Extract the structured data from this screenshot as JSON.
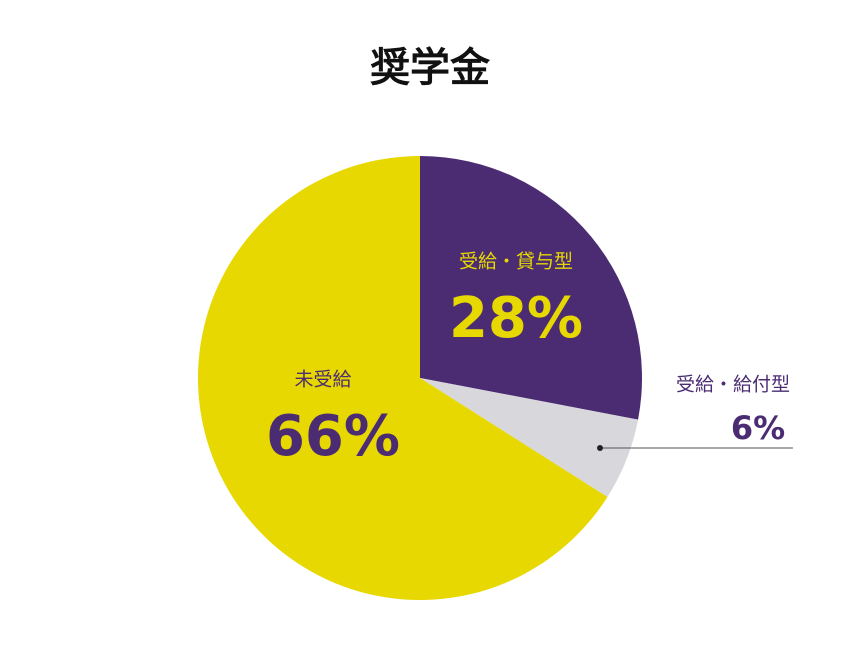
{
  "chart_data": {
    "type": "pie",
    "title": "奨学金",
    "categories": [
      "受給・貸与型",
      "受給・給付型",
      "未受給"
    ],
    "values": [
      28,
      6,
      66
    ],
    "value_labels": [
      "28%",
      "6%",
      "66%"
    ],
    "colors": [
      "#4b2c73",
      "#d8d7dc",
      "#e6d800"
    ]
  }
}
